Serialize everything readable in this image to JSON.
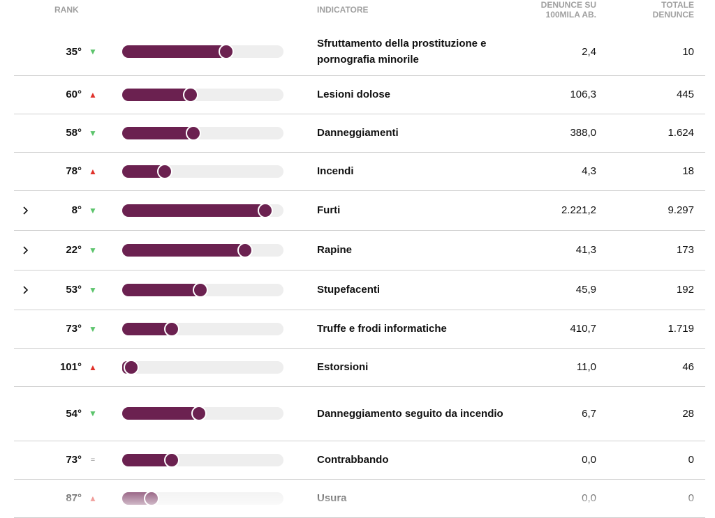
{
  "header": {
    "rank": "RANK",
    "indicator": "INDICATORE",
    "rate": "DENUNCE SU 100MILA AB.",
    "total": "TOTALE DENUNCE"
  },
  "table": {
    "rows": [
      {
        "rank": {
          "value": 35,
          "label": "35°"
        },
        "trend": {
          "symbol": "▼",
          "color": "#5cc46c"
        },
        "indicator": "Sfruttamento della prostituzione e pornografia minorile",
        "rate": "2,4",
        "total": "10",
        "expandable": false
      },
      {
        "rank": {
          "value": 60,
          "label": "60°"
        },
        "trend": {
          "symbol": "▲",
          "color": "#e0322b"
        },
        "indicator": "Lesioni dolose",
        "rate": "106,3",
        "total": "445",
        "expandable": false
      },
      {
        "rank": {
          "value": 58,
          "label": "58°"
        },
        "trend": {
          "symbol": "▼",
          "color": "#5cc46c"
        },
        "indicator": "Danneggiamenti",
        "rate": "388,0",
        "total": "1.624",
        "expandable": false
      },
      {
        "rank": {
          "value": 78,
          "label": "78°"
        },
        "trend": {
          "symbol": "▲",
          "color": "#e0322b"
        },
        "indicator": "Incendi",
        "rate": "4,3",
        "total": "18",
        "expandable": false
      },
      {
        "rank": {
          "value": 8,
          "label": "8°"
        },
        "trend": {
          "symbol": "▼",
          "color": "#5cc46c"
        },
        "indicator": "Furti",
        "rate": "2.221,2",
        "total": "9.297",
        "expandable": true
      },
      {
        "rank": {
          "value": 22,
          "label": "22°"
        },
        "trend": {
          "symbol": "▼",
          "color": "#5cc46c"
        },
        "indicator": "Rapine",
        "rate": "41,3",
        "total": "173",
        "expandable": true
      },
      {
        "rank": {
          "value": 53,
          "label": "53°"
        },
        "trend": {
          "symbol": "▼",
          "color": "#5cc46c"
        },
        "indicator": "Stupefacenti",
        "rate": "45,9",
        "total": "192",
        "expandable": true
      },
      {
        "rank": {
          "value": 73,
          "label": "73°"
        },
        "trend": {
          "symbol": "▼",
          "color": "#5cc46c"
        },
        "indicator": "Truffe e frodi informatiche",
        "rate": "410,7",
        "total": "1.719",
        "expandable": false
      },
      {
        "rank": {
          "value": 101,
          "label": "101°"
        },
        "trend": {
          "symbol": "▲",
          "color": "#e0322b"
        },
        "indicator": "Estorsioni",
        "rate": "11,0",
        "total": "46",
        "expandable": false
      },
      {
        "rank": {
          "value": 54,
          "label": "54°"
        },
        "trend": {
          "symbol": "▼",
          "color": "#5cc46c"
        },
        "indicator": "Danneggiamento seguito da incendio",
        "rate": "6,7",
        "total": "28",
        "expandable": false
      },
      {
        "rank": {
          "value": 73,
          "label": "73°"
        },
        "trend": {
          "symbol": "=",
          "color": "#999999"
        },
        "indicator": "Contrabbando",
        "rate": "0,0",
        "total": "0",
        "expandable": false
      },
      {
        "rank": {
          "value": 87,
          "label": "87°"
        },
        "trend": {
          "symbol": "▲",
          "color": "#e0322b"
        },
        "indicator": "Usura",
        "rate": "0,0",
        "total": "0",
        "expandable": false
      }
    ]
  }
}
